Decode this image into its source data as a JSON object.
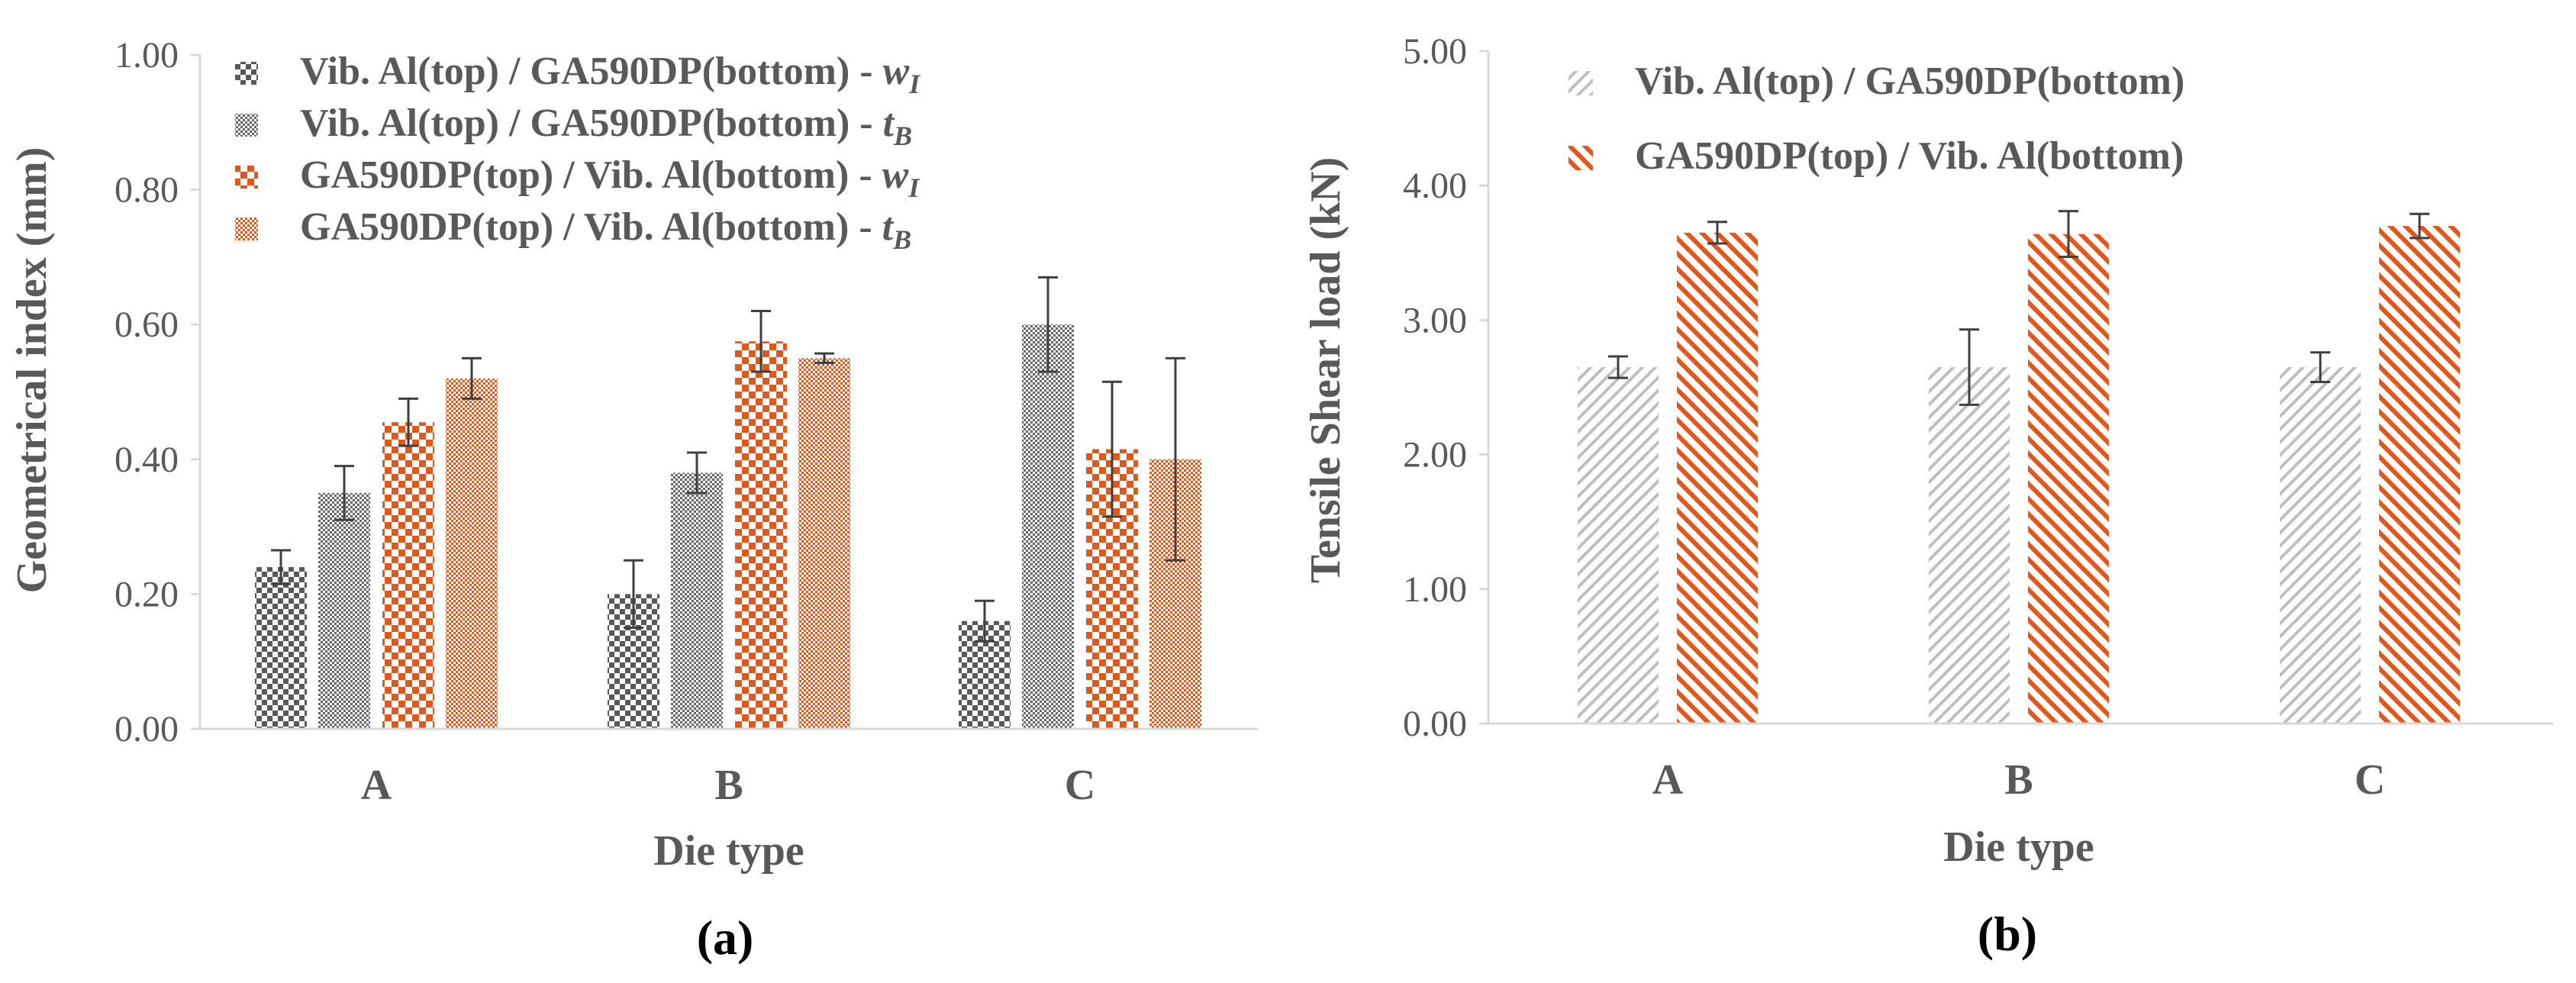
{
  "colors": {
    "gray": "#595959",
    "orange": "#e2571b",
    "light_gray": "#bfbfbf",
    "axis": "#d9d9d9",
    "error_bar": "#3f3f3f"
  },
  "chart_data": [
    {
      "id": "a",
      "type": "bar",
      "panel_label": "(a)",
      "title": "",
      "xlabel": "Die type",
      "ylabel": "Geometrical index (mm)",
      "ylim": [
        0,
        1
      ],
      "yticks": [
        "0.00",
        "0.20",
        "0.40",
        "0.60",
        "0.80",
        "1.00"
      ],
      "ytick_values": [
        0,
        0.2,
        0.4,
        0.6,
        0.8,
        1.0
      ],
      "categories": [
        "A",
        "B",
        "C"
      ],
      "legend_position": "top-left",
      "series": [
        {
          "name": "Vib. Al(top) / GA590DP(bottom) - ",
          "symbol": "w",
          "subscript": "I",
          "pattern": "gray-check-small",
          "values": [
            0.24,
            0.2,
            0.16
          ],
          "errors": [
            0.025,
            0.05,
            0.03
          ]
        },
        {
          "name": "Vib. Al(top) / GA590DP(bottom) - ",
          "symbol": "t",
          "subscript": "B",
          "pattern": "gray-check-fine",
          "values": [
            0.35,
            0.38,
            0.6
          ],
          "errors": [
            0.04,
            0.03,
            0.07
          ]
        },
        {
          "name": "GA590DP(top) / Vib. Al(bottom) - ",
          "symbol": "w",
          "subscript": "I",
          "pattern": "orange-check-large",
          "values": [
            0.455,
            0.575,
            0.415
          ],
          "errors": [
            0.035,
            0.045,
            0.1
          ]
        },
        {
          "name": "GA590DP(top) / Vib. Al(bottom) - ",
          "symbol": "t",
          "subscript": "B",
          "pattern": "orange-check-fine",
          "values": [
            0.52,
            0.55,
            0.4
          ],
          "errors": [
            0.03,
            0.007,
            0.15
          ]
        }
      ]
    },
    {
      "id": "b",
      "type": "bar",
      "panel_label": "(b)",
      "title": "",
      "xlabel": "Die type",
      "ylabel": "Tensile Shear load (kN)",
      "ylim": [
        0,
        5
      ],
      "yticks": [
        "0.00",
        "1.00",
        "2.00",
        "3.00",
        "4.00",
        "5.00"
      ],
      "ytick_values": [
        0,
        1,
        2,
        3,
        4,
        5
      ],
      "categories": [
        "A",
        "B",
        "C"
      ],
      "legend_position": "top-left",
      "series": [
        {
          "name": "Vib. Al(top) / GA590DP(bottom)",
          "symbol": "",
          "subscript": "",
          "pattern": "gray-diag",
          "values": [
            2.65,
            2.65,
            2.65
          ],
          "errors": [
            0.08,
            0.28,
            0.11
          ]
        },
        {
          "name": "GA590DP(top) / Vib. Al(bottom)",
          "symbol": "",
          "subscript": "",
          "pattern": "orange-diag",
          "values": [
            3.65,
            3.64,
            3.7
          ],
          "errors": [
            0.08,
            0.17,
            0.09
          ]
        }
      ]
    }
  ]
}
